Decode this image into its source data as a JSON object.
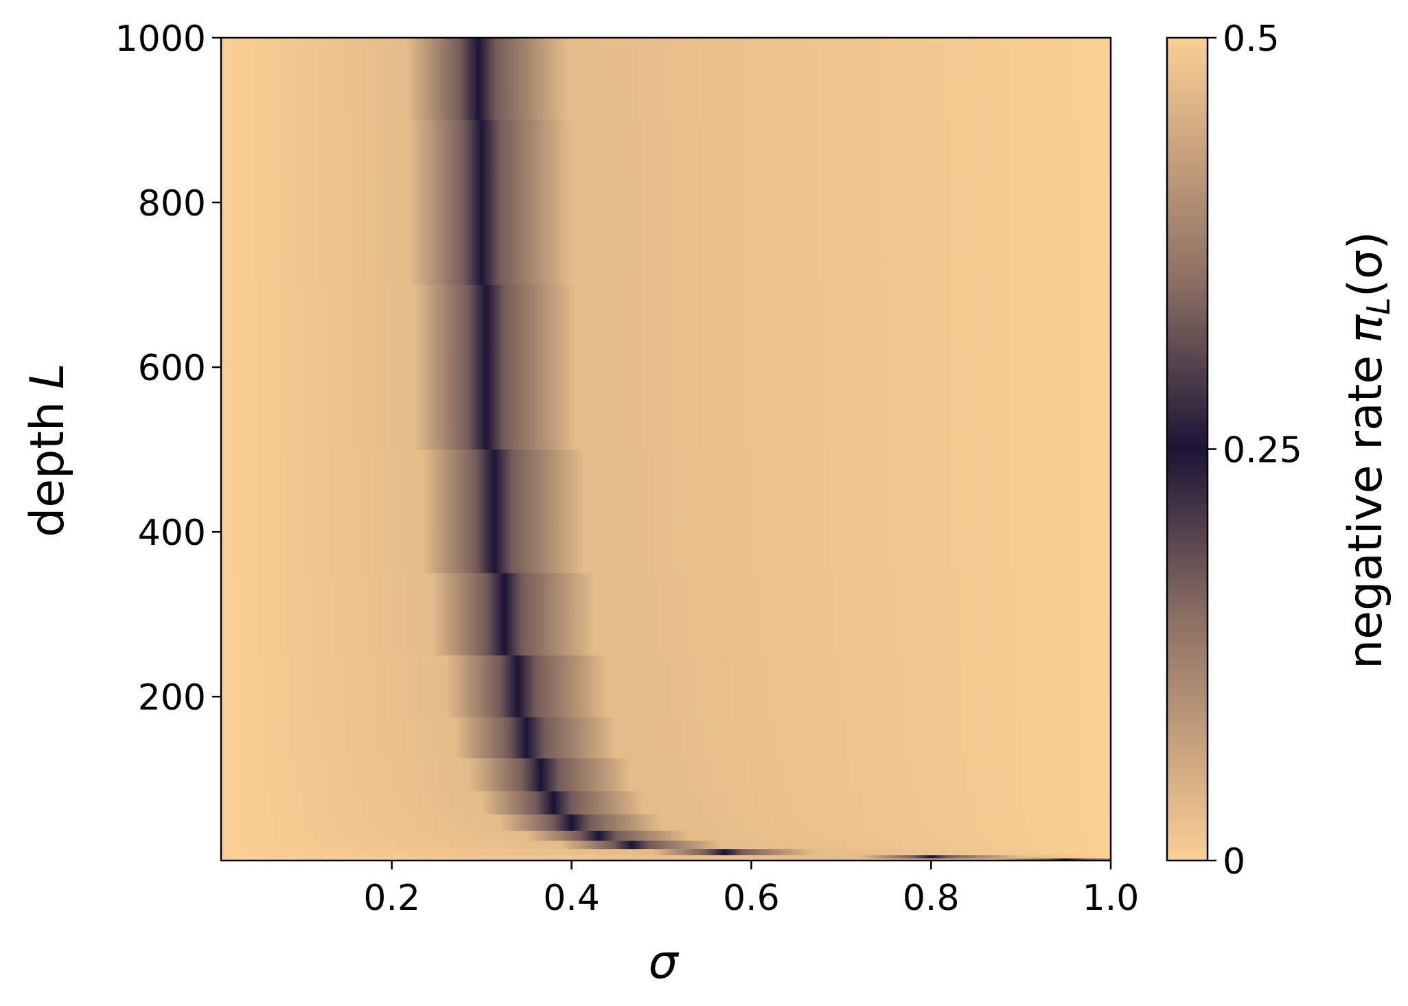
{
  "chart_data": {
    "type": "heatmap",
    "x_label": "σ",
    "y_label": {
      "text": "depth",
      "symbol": "L"
    },
    "colorbar_label": {
      "text": "negative rate",
      "symbol": "π",
      "subscript": "L",
      "argument": "(σ)"
    },
    "xlim": [
      0.01,
      1.0
    ],
    "xticks": [
      0.2,
      0.4,
      0.6,
      0.8,
      {
        "value": 1,
        "label": "1.0"
      }
    ],
    "ylim": [
      1,
      1000
    ],
    "yticks": [
      200,
      400,
      600,
      800,
      1000
    ],
    "colorbar_lim": [
      0,
      0.5
    ],
    "colorbar_ticks": [
      0,
      0.25,
      0.5
    ],
    "colormap": [
      {
        "value": 0,
        "color": "#fbcf94"
      },
      {
        "value": 0.15,
        "color": "#8a6e62"
      },
      {
        "value": 0.25,
        "color": "#1c1436"
      },
      {
        "value": 0.35,
        "color": "#8a6e62"
      },
      {
        "value": 0.5,
        "color": "#fbcf94"
      }
    ],
    "rows": [
      {
        "L": 1000,
        "sigma": [
          0.01,
          0.216,
          0.276,
          0.296,
          0.316,
          0.396,
          1.0
        ],
        "rate": [
          0,
          0.03,
          0.17,
          0.25,
          0.33,
          0.47,
          0.5
        ]
      },
      {
        "L": 800,
        "sigma": [
          0.01,
          0.22,
          0.28,
          0.3,
          0.32,
          0.4,
          1.0
        ],
        "rate": [
          0,
          0.03,
          0.17,
          0.25,
          0.33,
          0.47,
          0.5
        ]
      },
      {
        "L": 600,
        "sigma": [
          0.01,
          0.225,
          0.285,
          0.305,
          0.325,
          0.405,
          1.0
        ],
        "rate": [
          0,
          0.03,
          0.17,
          0.25,
          0.33,
          0.47,
          0.5
        ]
      },
      {
        "L": 400,
        "sigma": [
          0.01,
          0.234,
          0.294,
          0.314,
          0.334,
          0.414,
          1.0
        ],
        "rate": [
          0,
          0.03,
          0.17,
          0.25,
          0.33,
          0.47,
          0.5
        ]
      },
      {
        "L": 300,
        "sigma": [
          0.01,
          0.245,
          0.305,
          0.325,
          0.345,
          0.425,
          1.0
        ],
        "rate": [
          0,
          0.03,
          0.17,
          0.25,
          0.33,
          0.47,
          0.5
        ]
      },
      {
        "L": 200,
        "sigma": [
          0.01,
          0.26,
          0.32,
          0.34,
          0.36,
          0.44,
          1.0
        ],
        "rate": [
          0,
          0.03,
          0.17,
          0.25,
          0.33,
          0.47,
          0.5
        ]
      },
      {
        "L": 150,
        "sigma": [
          0.01,
          0.27,
          0.33,
          0.35,
          0.37,
          0.45,
          1.0
        ],
        "rate": [
          0,
          0.03,
          0.17,
          0.25,
          0.33,
          0.47,
          0.5
        ]
      },
      {
        "L": 100,
        "sigma": [
          0.01,
          0.286,
          0.346,
          0.366,
          0.386,
          0.466,
          1.0
        ],
        "rate": [
          0,
          0.03,
          0.17,
          0.25,
          0.33,
          0.47,
          0.5
        ]
      },
      {
        "L": 70,
        "sigma": [
          0.01,
          0.3,
          0.36,
          0.38,
          0.4,
          0.48,
          1.0
        ],
        "rate": [
          0,
          0.03,
          0.17,
          0.25,
          0.33,
          0.47,
          0.5
        ]
      },
      {
        "L": 44,
        "sigma": [
          0.01,
          0.32,
          0.38,
          0.4,
          0.42,
          0.5,
          1.0
        ],
        "rate": [
          0,
          0.03,
          0.17,
          0.25,
          0.33,
          0.47,
          0.5
        ]
      },
      {
        "L": 30,
        "sigma": [
          0.01,
          0.35,
          0.41,
          0.43,
          0.45,
          0.53,
          1.0
        ],
        "rate": [
          0,
          0.03,
          0.17,
          0.25,
          0.33,
          0.47,
          0.5
        ]
      },
      {
        "L": 20,
        "sigma": [
          0.01,
          0.387,
          0.447,
          0.467,
          0.487,
          0.567,
          1.0
        ],
        "rate": [
          0,
          0.03,
          0.17,
          0.25,
          0.33,
          0.47,
          0.5
        ]
      },
      {
        "L": 10,
        "sigma": [
          0.01,
          0.49,
          0.55,
          0.57,
          0.59,
          0.67,
          1.0
        ],
        "rate": [
          0,
          0.03,
          0.17,
          0.25,
          0.33,
          0.47,
          0.5
        ]
      },
      {
        "L": 5,
        "sigma": [
          0.01,
          0.72,
          0.78,
          0.8,
          0.82,
          0.9,
          1.0
        ],
        "rate": [
          0,
          0.03,
          0.17,
          0.25,
          0.33,
          0.47,
          0.5
        ]
      },
      {
        "L": 2,
        "sigma": [
          0.01,
          0.87,
          0.93,
          0.95,
          0.97,
          1.0
        ],
        "rate": [
          0,
          0.03,
          0.17,
          0.25,
          0.33,
          0.4
        ]
      }
    ]
  }
}
